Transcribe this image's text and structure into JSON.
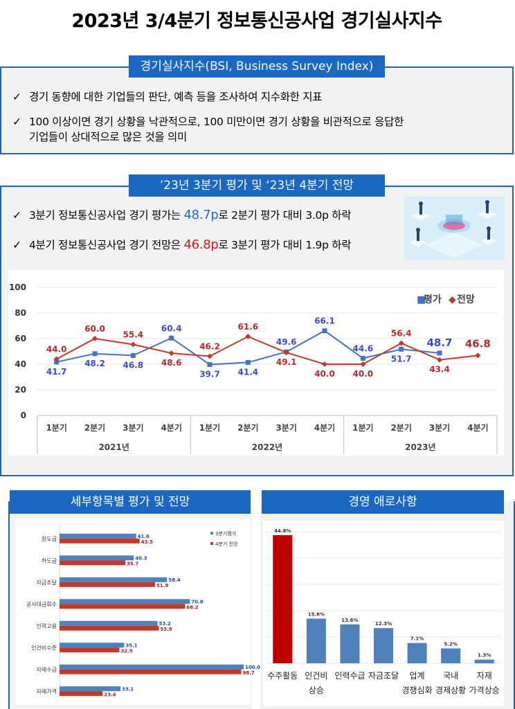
{
  "page": {
    "title": "2023년 3/4분기 정보통신공사업 경기실사지수"
  },
  "bsi": {
    "tab_label": "경기실사지수(BSI, Business Survey Index)",
    "check": "✓",
    "bullet1": "경기 동향에 대한 기업들의 판단, 예측 등을 조사하여 지수화한 지표",
    "bullet2_line1": "100 이상이면 경기 상황을 낙관적으로, 100 미만이면 경기 상황을 비관적으로 응답한",
    "bullet2_line2": "기업들이 상대적으로 많은 것을 의미"
  },
  "outlook": {
    "tab_label": "’23년 3분기 평가 및 ‘23년 4분기 전망",
    "b1_pre": "3분기 정보통신공사업 경기 평가는 ",
    "b1_value": "48.7p",
    "b1_post": "로 2분기 평가 대비 3.0p 하락",
    "b2_pre": "4분기 정보통신공사업 경기 전망은 ",
    "b2_value": "46.8p",
    "b2_post": "로 3분기 평가 대비 1.9p 하락"
  },
  "colors": {
    "blue": "#4472c4",
    "red": "#c0392b",
    "accent": "#1a68c2",
    "bar_red": "#c00000",
    "bar_blue": "#4f81bd"
  },
  "chart_data": [
    {
      "type": "line",
      "title": "",
      "categories": [
        "1분기",
        "2분기",
        "3분기",
        "4분기",
        "1분기",
        "2분기",
        "3분기",
        "4분기",
        "1분기",
        "2분기",
        "3분기",
        "4분기"
      ],
      "groups": [
        "2021년",
        "2022년",
        "2023년"
      ],
      "series": [
        {
          "name": "평가",
          "values": [
            41.7,
            48.2,
            46.8,
            60.4,
            39.7,
            41.4,
            49.6,
            66.1,
            44.6,
            51.7,
            48.7,
            null
          ]
        },
        {
          "name": "전망",
          "values": [
            44.0,
            60.0,
            55.4,
            48.6,
            46.2,
            61.6,
            49.1,
            40.0,
            40.0,
            56.4,
            43.4,
            46.8
          ]
        }
      ],
      "labels_eval": [
        "41.7",
        "48.2",
        "46.8",
        "60.4",
        "39.7",
        "41.4",
        "49.6",
        "66.1",
        "44.6",
        "51.7",
        "48.7"
      ],
      "labels_fore": [
        "44.0",
        "60.0",
        "55.4",
        "48.6",
        "46.2",
        "61.6",
        "49.1",
        "40.0",
        "40.0",
        "56.4",
        "43.4",
        "46.8"
      ],
      "legend_marker_eval": "■",
      "legend_marker_fore": "◆",
      "yticks": [
        "0",
        "20",
        "40",
        "60",
        "80",
        "100"
      ],
      "ylim": [
        0,
        100
      ],
      "legend": "top-right"
    },
    {
      "type": "bar",
      "title": "세부항목별 평가 및 전망",
      "categories": [
        "원도급",
        "하도급",
        "자금조달",
        "공사대금회수",
        "인력고용",
        "인건비수준",
        "자재수급",
        "자재가격"
      ],
      "series": [
        {
          "name": "3분기평가",
          "values": [
            41.6,
            40.3,
            58.4,
            70.8,
            53.2,
            35.1,
            100.0,
            33.1
          ]
        },
        {
          "name": "4분기 전망",
          "values": [
            43.5,
            35.7,
            51.9,
            68.2,
            53.9,
            32.5,
            98.7,
            23.4
          ]
        }
      ],
      "labels_eval": [
        "41.6",
        "40.3",
        "58.4",
        "70.8",
        "53.2",
        "35.1",
        "100.0",
        "33.1"
      ],
      "labels_fore": [
        "43.5",
        "35.7",
        "51.9",
        "68.2",
        "53.9",
        "32.5",
        "98.7",
        "23.4"
      ],
      "legend": "top-right"
    },
    {
      "type": "bar",
      "title": "경영 애로사항",
      "categories": [
        "수주활동",
        "인건비 상승",
        "인력수급",
        "자금조달",
        "업계 경쟁심화",
        "국내 경제상황",
        "자재 가격상승"
      ],
      "cat_line1": [
        "수주활동",
        "인건비",
        "인력수급",
        "자금조달",
        "업계",
        "국내",
        "자재"
      ],
      "cat_line2": [
        "",
        "상승",
        "",
        "",
        "경쟁심화",
        "경제상황",
        "가격상승"
      ],
      "values": [
        44.8,
        15.6,
        13.6,
        12.3,
        7.1,
        5.2,
        1.3
      ],
      "labels": [
        "44.8%",
        "15.6%",
        "13.6%",
        "12.3%",
        "7.1%",
        "5.2%",
        "1.3%"
      ],
      "unit": "%"
    }
  ]
}
